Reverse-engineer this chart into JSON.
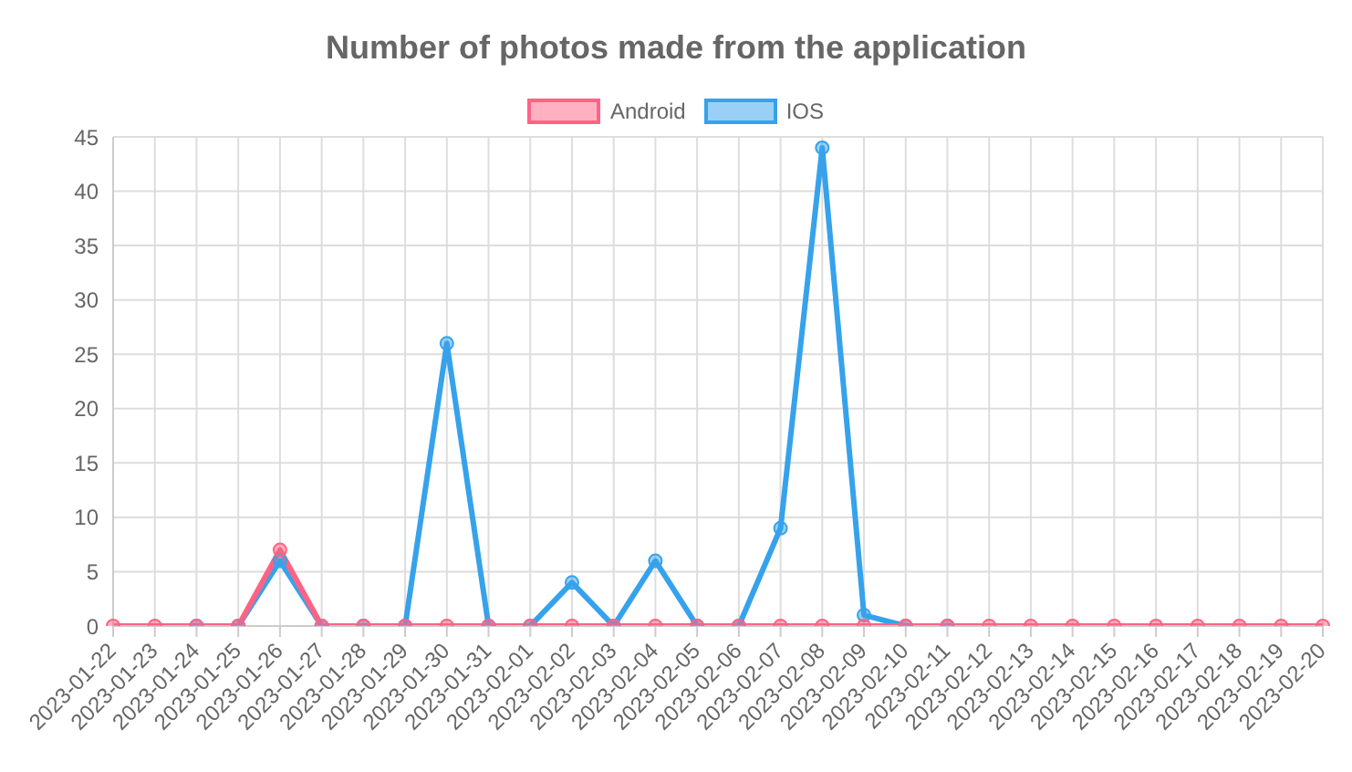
{
  "chart_data": {
    "type": "line",
    "title": "Number of photos made from the application",
    "categories": [
      "2023-01-22",
      "2023-01-23",
      "2023-01-24",
      "2023-01-25",
      "2023-01-26",
      "2023-01-27",
      "2023-01-28",
      "2023-01-29",
      "2023-01-30",
      "2023-01-31",
      "2023-02-01",
      "2023-02-02",
      "2023-02-03",
      "2023-02-04",
      "2023-02-05",
      "2023-02-06",
      "2023-02-07",
      "2023-02-08",
      "2023-02-09",
      "2023-02-10",
      "2023-02-11",
      "2023-02-12",
      "2023-02-13",
      "2023-02-14",
      "2023-02-15",
      "2023-02-16",
      "2023-02-17",
      "2023-02-18",
      "2023-02-19",
      "2023-02-20"
    ],
    "series": [
      {
        "name": "Android",
        "color": "#ff6384",
        "values": [
          0,
          0,
          0,
          0,
          7,
          0,
          0,
          0,
          0,
          0,
          0,
          0,
          0,
          0,
          0,
          0,
          0,
          0,
          0,
          0,
          0,
          0,
          0,
          0,
          0,
          0,
          0,
          0,
          0,
          0
        ]
      },
      {
        "name": "IOS",
        "color": "#36a2eb",
        "values": [
          null,
          null,
          0,
          0,
          6,
          0,
          0,
          0,
          26,
          0,
          0,
          4,
          0,
          6,
          0,
          0,
          9,
          44,
          1,
          0,
          0,
          null,
          null,
          null,
          null,
          null,
          null,
          null,
          null,
          null
        ]
      }
    ],
    "ylim": [
      0,
      45
    ],
    "yticks": [
      0,
      5,
      10,
      15,
      20,
      25,
      30,
      35,
      40,
      45
    ],
    "grid": true,
    "legend": "top",
    "marker": "circle",
    "line_style": "solid"
  }
}
